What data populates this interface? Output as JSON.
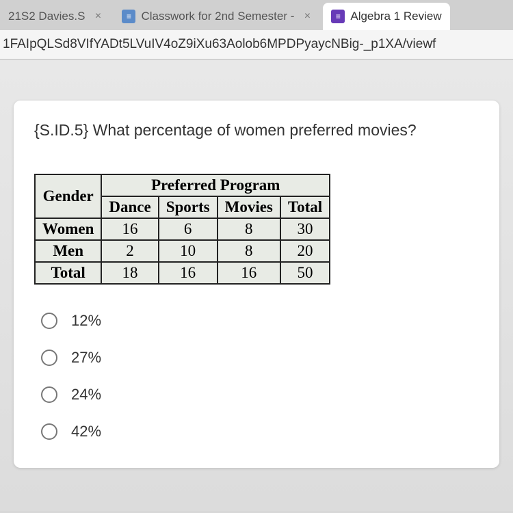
{
  "tabs": [
    {
      "title": "21S2 Davies.S",
      "icon": "",
      "iconClass": ""
    },
    {
      "title": "Classwork for 2nd Semester - ",
      "icon": "≡",
      "iconClass": "blue"
    },
    {
      "title": "Algebra 1 Review",
      "icon": "≡",
      "iconClass": "purple"
    }
  ],
  "url": "1FAIpQLSd8VIfYADt5LVuIV4oZ9iXu63Aolob6MPDPyaycNBig-_p1XA/viewf",
  "question": "{S.ID.5} What percentage of women preferred movies?",
  "table": {
    "topHeader": "Preferred Program",
    "rowHeader": "Gender",
    "cols": [
      "Dance",
      "Sports",
      "Movies",
      "Total"
    ],
    "rows": [
      {
        "name": "Women",
        "vals": [
          "16",
          "6",
          "8",
          "30"
        ]
      },
      {
        "name": "Men",
        "vals": [
          "2",
          "10",
          "8",
          "20"
        ]
      },
      {
        "name": "Total",
        "vals": [
          "18",
          "16",
          "16",
          "50"
        ]
      }
    ]
  },
  "options": [
    "12%",
    "27%",
    "24%",
    "42%"
  ]
}
